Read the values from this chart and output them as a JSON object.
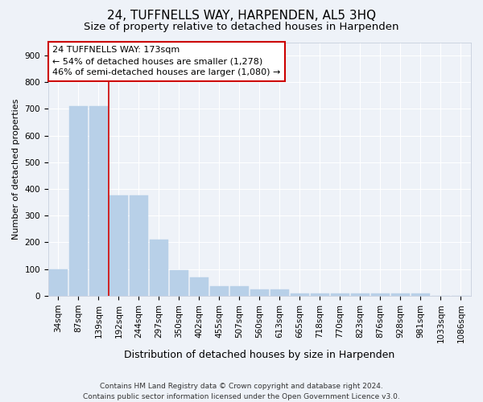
{
  "title": "24, TUFFNELLS WAY, HARPENDEN, AL5 3HQ",
  "subtitle": "Size of property relative to detached houses in Harpenden",
  "xlabel": "Distribution of detached houses by size in Harpenden",
  "ylabel": "Number of detached properties",
  "categories": [
    "34sqm",
    "87sqm",
    "139sqm",
    "192sqm",
    "244sqm",
    "297sqm",
    "350sqm",
    "402sqm",
    "455sqm",
    "507sqm",
    "560sqm",
    "613sqm",
    "665sqm",
    "718sqm",
    "770sqm",
    "823sqm",
    "876sqm",
    "928sqm",
    "981sqm",
    "1033sqm",
    "1086sqm"
  ],
  "values": [
    100,
    710,
    710,
    375,
    375,
    210,
    95,
    70,
    35,
    35,
    25,
    25,
    10,
    10,
    10,
    10,
    10,
    10,
    8,
    0,
    0
  ],
  "bar_color": "#b8d0e8",
  "bar_edge_color": "#b8d0e8",
  "background_color": "#eef2f8",
  "grid_color": "#ffffff",
  "vline_color": "#cc0000",
  "vline_x_index": 2.5,
  "annotation_text": "24 TUFFNELLS WAY: 173sqm\n← 54% of detached houses are smaller (1,278)\n46% of semi-detached houses are larger (1,080) →",
  "annotation_box_facecolor": "#ffffff",
  "annotation_box_edgecolor": "#cc0000",
  "ylim": [
    0,
    950
  ],
  "yticks": [
    0,
    100,
    200,
    300,
    400,
    500,
    600,
    700,
    800,
    900
  ],
  "footer": "Contains HM Land Registry data © Crown copyright and database right 2024.\nContains public sector information licensed under the Open Government Licence v3.0.",
  "title_fontsize": 11,
  "subtitle_fontsize": 9.5,
  "xlabel_fontsize": 9,
  "ylabel_fontsize": 8,
  "tick_fontsize": 7.5,
  "annotation_fontsize": 8,
  "footer_fontsize": 6.5
}
